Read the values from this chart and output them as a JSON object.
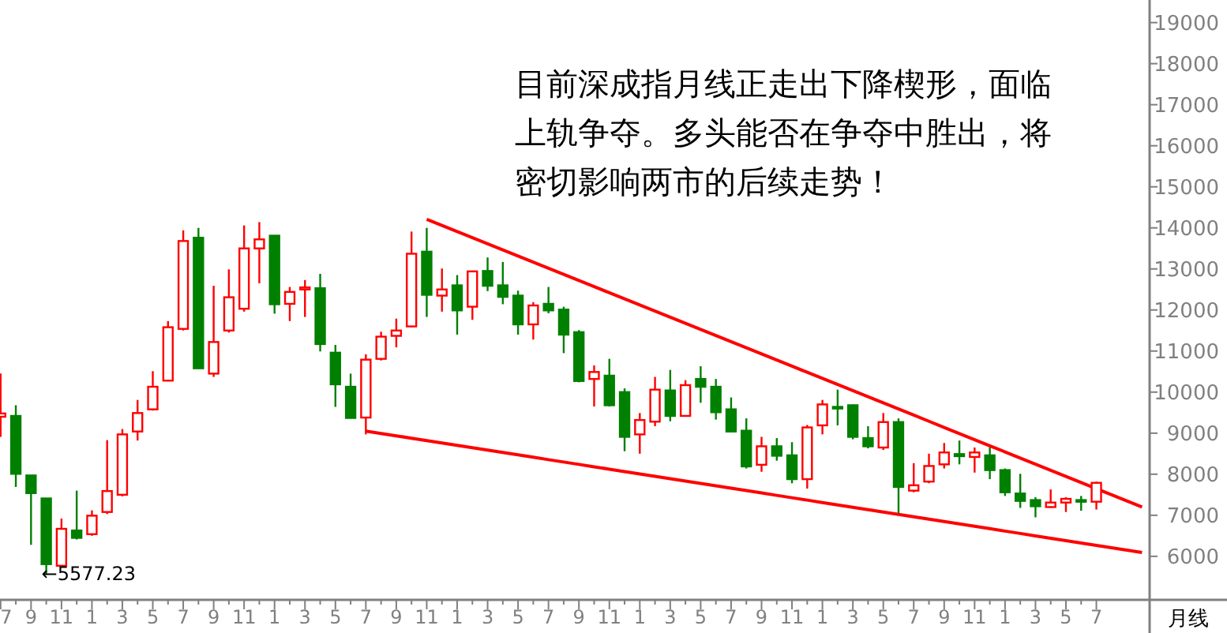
{
  "chart_data": {
    "type": "candlestick",
    "categories": [
      "7",
      null,
      "9",
      null,
      "11",
      null,
      "1",
      null,
      "3",
      null,
      "5",
      null,
      "7",
      null,
      "9",
      null,
      "11",
      null,
      "1",
      null,
      "3",
      null,
      "5",
      null,
      "7",
      null,
      "9",
      null,
      "11",
      null,
      "1",
      null,
      "3",
      null,
      "5",
      null,
      "7",
      null,
      "9",
      null,
      "11",
      null,
      "1",
      null,
      "3",
      null,
      "5",
      null,
      "7",
      null,
      "9",
      null,
      "11",
      null,
      "1",
      null,
      "3",
      null,
      "5",
      null,
      "7",
      null,
      "9",
      null,
      "11",
      null,
      "1",
      null,
      "3",
      null,
      "5",
      null,
      "7",
      null,
      null,
      null
    ],
    "ohlc": [
      [
        9400,
        10450,
        8910,
        9480
      ],
      [
        9420,
        9680,
        7690,
        8010
      ],
      [
        7970,
        7980,
        6280,
        7540
      ],
      [
        7410,
        7410,
        5577.23,
        5810
      ],
      [
        5770,
        6920,
        5730,
        6670
      ],
      [
        6630,
        7600,
        6410,
        6450
      ],
      [
        6540,
        7120,
        6500,
        6990
      ],
      [
        7080,
        8830,
        7030,
        7590
      ],
      [
        7500,
        9100,
        7460,
        8970
      ],
      [
        9040,
        9810,
        8820,
        9490
      ],
      [
        9580,
        10510,
        9550,
        10130
      ],
      [
        10280,
        11730,
        10260,
        11580
      ],
      [
        11540,
        13940,
        11500,
        13680
      ],
      [
        13760,
        14000,
        10580,
        10580
      ],
      [
        10450,
        12590,
        10370,
        11220
      ],
      [
        11500,
        12990,
        11450,
        12310
      ],
      [
        12030,
        14060,
        11960,
        13500
      ],
      [
        13500,
        14140,
        12650,
        13720
      ],
      [
        13810,
        13810,
        11910,
        12140
      ],
      [
        12150,
        12560,
        11730,
        12440
      ],
      [
        12500,
        12730,
        11830,
        12550
      ],
      [
        12530,
        12880,
        10990,
        11170
      ],
      [
        10960,
        11150,
        9640,
        10190
      ],
      [
        10130,
        10450,
        9370,
        9370
      ],
      [
        9380,
        10920,
        8970,
        10790
      ],
      [
        10810,
        11470,
        10770,
        11350
      ],
      [
        11370,
        11790,
        11090,
        11500
      ],
      [
        11600,
        13910,
        11580,
        13370
      ],
      [
        13420,
        14000,
        11830,
        12370
      ],
      [
        12350,
        13010,
        11960,
        12500
      ],
      [
        12600,
        12850,
        11400,
        11990
      ],
      [
        12080,
        12960,
        11760,
        12940
      ],
      [
        12950,
        13280,
        12460,
        12590
      ],
      [
        12600,
        13170,
        12140,
        12320
      ],
      [
        12350,
        12470,
        11400,
        11650
      ],
      [
        11650,
        12190,
        11280,
        12110
      ],
      [
        12150,
        12560,
        11920,
        11990
      ],
      [
        12010,
        12080,
        10950,
        11400
      ],
      [
        11460,
        11510,
        10240,
        10270
      ],
      [
        10320,
        10650,
        9650,
        10490
      ],
      [
        10400,
        10810,
        9650,
        9680
      ],
      [
        10000,
        10090,
        8560,
        8910
      ],
      [
        8970,
        9490,
        8500,
        9320
      ],
      [
        9280,
        10370,
        9170,
        10060
      ],
      [
        10040,
        10540,
        9290,
        9420
      ],
      [
        9420,
        10290,
        9400,
        10170
      ],
      [
        10320,
        10630,
        9740,
        10130
      ],
      [
        10130,
        10320,
        9330,
        9510
      ],
      [
        9580,
        9870,
        9040,
        9040
      ],
      [
        9060,
        9360,
        8140,
        8190
      ],
      [
        8230,
        8910,
        8060,
        8680
      ],
      [
        8680,
        8880,
        8330,
        8450
      ],
      [
        8460,
        8780,
        7780,
        7880
      ],
      [
        7880,
        9200,
        7650,
        9140
      ],
      [
        9190,
        9810,
        8970,
        9700
      ],
      [
        9640,
        10060,
        9190,
        9600
      ],
      [
        9680,
        9700,
        8850,
        8910
      ],
      [
        8880,
        9170,
        8630,
        8680
      ],
      [
        8650,
        9490,
        8590,
        9270
      ],
      [
        9270,
        9360,
        7050,
        7690
      ],
      [
        7600,
        8270,
        7560,
        7730
      ],
      [
        7820,
        8500,
        7780,
        8200
      ],
      [
        8240,
        8760,
        8140,
        8530
      ],
      [
        8490,
        8820,
        8240,
        8440
      ],
      [
        8420,
        8650,
        8040,
        8530
      ],
      [
        8460,
        8650,
        7880,
        8100
      ],
      [
        8100,
        8140,
        7470,
        7560
      ],
      [
        7530,
        8010,
        7180,
        7350
      ],
      [
        7370,
        7440,
        6950,
        7220
      ],
      [
        7200,
        7630,
        7180,
        7310
      ],
      [
        7310,
        7440,
        7080,
        7400
      ],
      [
        7370,
        7470,
        7110,
        7330
      ],
      [
        7330,
        7820,
        7140,
        7790
      ],
      null,
      null,
      null
    ],
    "colors": [
      "#ff0000",
      "#008000",
      "#008000",
      "#008000",
      "#ff0000",
      "#008000",
      "#ff0000",
      "#ff0000",
      "#ff0000",
      "#ff0000",
      "#ff0000",
      "#ff0000",
      "#ff0000",
      "#008000",
      "#ff0000",
      "#ff0000",
      "#ff0000",
      "#ff0000",
      "#008000",
      "#ff0000",
      "#ff0000",
      "#008000",
      "#008000",
      "#008000",
      "#ff0000",
      "#ff0000",
      "#ff0000",
      "#ff0000",
      "#008000",
      "#ff0000",
      "#008000",
      "#ff0000",
      "#008000",
      "#008000",
      "#008000",
      "#ff0000",
      "#008000",
      "#008000",
      "#008000",
      "#ff0000",
      "#008000",
      "#008000",
      "#ff0000",
      "#ff0000",
      "#008000",
      "#ff0000",
      "#008000",
      "#008000",
      "#008000",
      "#008000",
      "#ff0000",
      "#008000",
      "#008000",
      "#ff0000",
      "#ff0000",
      "#008000",
      "#008000",
      "#008000",
      "#ff0000",
      "#008000",
      "#ff0000",
      "#ff0000",
      "#ff0000",
      "#008000",
      "#ff0000",
      "#008000",
      "#008000",
      "#008000",
      "#008000",
      "#ff0000",
      "#ff0000",
      "#008000",
      "#ff0000",
      null,
      null,
      null
    ],
    "series": [
      {
        "type": "line",
        "color": "#ff0000",
        "values": [
          null,
          null,
          null,
          null,
          null,
          null,
          null,
          null,
          null,
          null,
          null,
          null,
          null,
          null,
          null,
          null,
          null,
          null,
          null,
          null,
          null,
          null,
          null,
          null,
          null,
          null,
          null,
          null,
          14209,
          14060,
          13911,
          13762,
          13613,
          13464,
          13315,
          13165,
          13016,
          12867,
          12718,
          12569,
          12420,
          12271,
          12122,
          11973,
          11824,
          11675,
          11526,
          11376,
          11227,
          11078,
          10929,
          10780,
          10631,
          10482,
          10333,
          10184,
          10035,
          9886,
          9737,
          9588,
          9439,
          9289,
          9140,
          8991,
          8842,
          8693,
          8544,
          8395,
          8246,
          8097,
          7948,
          7799,
          7650,
          7500,
          7351,
          7202
        ]
      },
      {
        "type": "line",
        "color": "#ff0000",
        "values": [
          null,
          null,
          null,
          null,
          null,
          null,
          null,
          null,
          null,
          null,
          null,
          null,
          null,
          null,
          null,
          null,
          null,
          null,
          null,
          null,
          null,
          null,
          null,
          null,
          9051,
          8993,
          8935,
          8877,
          8819,
          8761,
          8703,
          8645,
          8587,
          8529,
          8471,
          8413,
          8355,
          8297,
          8239,
          8181,
          8123,
          8065,
          8007,
          7949,
          7891,
          7833,
          7775,
          7717,
          7659,
          7601,
          7543,
          7485,
          7427,
          7369,
          7311,
          7253,
          7195,
          7137,
          7079,
          7021,
          6963,
          6905,
          6847,
          6789,
          6731,
          6673,
          6615,
          6557,
          6499,
          6441,
          6383,
          6325,
          6267,
          6209,
          6151,
          6093
        ]
      }
    ],
    "ylim": [
      4940,
      19550
    ],
    "yticks": [
      6000,
      7000,
      8000,
      9000,
      10000,
      11000,
      12000,
      13000,
      14000,
      15000,
      16000,
      17000,
      18000,
      19000
    ],
    "xlabel": "月线",
    "annotations": [
      "目前深成指月线正走出下降楔形，面临上轨争夺。多头能否在争夺中胜出，将密切影响两市的后续走势！",
      "←5577.23"
    ]
  }
}
